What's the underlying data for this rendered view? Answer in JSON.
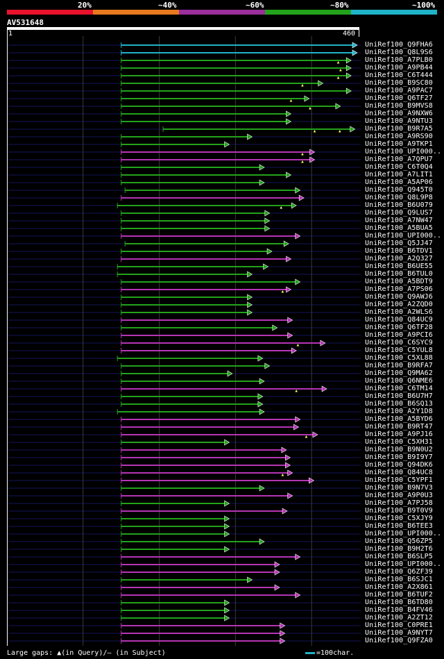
{
  "legend": {
    "segments": [
      {
        "label": "",
        "color": "#e8122d"
      },
      {
        "label": "20%",
        "color": "#e87a1e"
      },
      {
        "label": "~40%",
        "color": "#9b2f9b"
      },
      {
        "label": "~60%",
        "color": "#23a31b"
      },
      {
        "label": "~80%",
        "color": "#1fb3c8"
      }
    ],
    "labels": [
      "20%",
      "~40%",
      "~60%",
      "~80%",
      "~100%"
    ]
  },
  "query": {
    "id": "AV531648",
    "start_tick": "1",
    "end_tick": "460",
    "length": 460
  },
  "colors": {
    "cyan": "#1fb3c8",
    "green": "#23a31b",
    "magenta": "#b535b5",
    "background_line": "#14145a",
    "grid": "#3a3a3a",
    "gap_marker": "#ffff66"
  },
  "hits": [
    {
      "name": "UniRef100_Q9FHA6",
      "color": "cyan",
      "start": 150,
      "end": 460,
      "gaps": []
    },
    {
      "name": "UniRef100_Q8L9S6",
      "color": "cyan",
      "start": 150,
      "end": 460,
      "gaps": []
    },
    {
      "name": "UniRef100_A7PLB0",
      "color": "green",
      "start": 150,
      "end": 452,
      "gaps": [
        435
      ]
    },
    {
      "name": "UniRef100_A9PB44",
      "color": "green",
      "start": 150,
      "end": 452,
      "gaps": [
        438
      ]
    },
    {
      "name": "UniRef100_C6T444",
      "color": "green",
      "start": 150,
      "end": 452,
      "gaps": [
        435
      ]
    },
    {
      "name": "UniRef100_B9SC80",
      "color": "green",
      "start": 150,
      "end": 415,
      "gaps": [
        388
      ]
    },
    {
      "name": "UniRef100_A9PAC7",
      "color": "green",
      "start": 150,
      "end": 452,
      "gaps": []
    },
    {
      "name": "UniRef100_Q6TF27",
      "color": "green",
      "start": 150,
      "end": 397,
      "gaps": [
        373
      ]
    },
    {
      "name": "UniRef100_B9MVS8",
      "color": "green",
      "start": 150,
      "end": 438,
      "gaps": [
        398
      ]
    },
    {
      "name": "UniRef100_A9NXW6",
      "color": "green",
      "start": 150,
      "end": 373,
      "gaps": []
    },
    {
      "name": "UniRef100_A9NTU3",
      "color": "green",
      "start": 150,
      "end": 373,
      "gaps": []
    },
    {
      "name": "UniRef100_B9R7A5",
      "color": "green",
      "start": 205,
      "end": 457,
      "gaps": [
        404,
        437
      ]
    },
    {
      "name": "UniRef100_A9RS90",
      "color": "green",
      "start": 150,
      "end": 322,
      "gaps": []
    },
    {
      "name": "UniRef100_A9TKP1",
      "color": "green",
      "start": 150,
      "end": 292,
      "gaps": []
    },
    {
      "name": "UniRef100_UPI000..",
      "color": "magenta",
      "start": 150,
      "end": 404,
      "gaps": [
        388
      ]
    },
    {
      "name": "UniRef100_A7QPU7",
      "color": "magenta",
      "start": 150,
      "end": 404,
      "gaps": [
        388
      ]
    },
    {
      "name": "UniRef100_C6T0Q4",
      "color": "green",
      "start": 150,
      "end": 338,
      "gaps": []
    },
    {
      "name": "UniRef100_A7LIT1",
      "color": "green",
      "start": 150,
      "end": 373,
      "gaps": []
    },
    {
      "name": "UniRef100_A5AP06",
      "color": "green",
      "start": 150,
      "end": 338,
      "gaps": []
    },
    {
      "name": "UniRef100_Q945T0",
      "color": "green",
      "start": 155,
      "end": 385,
      "gaps": []
    },
    {
      "name": "UniRef100_Q8L9P8",
      "color": "magenta",
      "start": 150,
      "end": 390,
      "gaps": []
    },
    {
      "name": "UniRef100_B6U079",
      "color": "green",
      "start": 145,
      "end": 380,
      "gaps": [
        360
      ]
    },
    {
      "name": "UniRef100_Q9LUS7",
      "color": "green",
      "start": 150,
      "end": 345,
      "gaps": []
    },
    {
      "name": "UniRef100_A7NW47",
      "color": "green",
      "start": 150,
      "end": 345,
      "gaps": []
    },
    {
      "name": "UniRef100_A5BUA5",
      "color": "green",
      "start": 150,
      "end": 345,
      "gaps": []
    },
    {
      "name": "UniRef100_UPI000..",
      "color": "magenta",
      "start": 150,
      "end": 385,
      "gaps": []
    },
    {
      "name": "UniRef100_Q5JJ47",
      "color": "green",
      "start": 155,
      "end": 370,
      "gaps": []
    },
    {
      "name": "UniRef100_B6TDV1",
      "color": "green",
      "start": 150,
      "end": 348,
      "gaps": []
    },
    {
      "name": "UniRef100_A2Q327",
      "color": "magenta",
      "start": 150,
      "end": 373,
      "gaps": []
    },
    {
      "name": "UniRef100_B6UE55",
      "color": "green",
      "start": 145,
      "end": 343,
      "gaps": []
    },
    {
      "name": "UniRef100_B6TUL0",
      "color": "green",
      "start": 145,
      "end": 322,
      "gaps": []
    },
    {
      "name": "UniRef100_A5BDT9",
      "color": "green",
      "start": 150,
      "end": 385,
      "gaps": []
    },
    {
      "name": "UniRef100_A7PS06",
      "color": "magenta",
      "start": 150,
      "end": 373,
      "gaps": [
        362
      ]
    },
    {
      "name": "UniRef100_Q9AWJ6",
      "color": "green",
      "start": 150,
      "end": 322,
      "gaps": []
    },
    {
      "name": "UniRef100_A2ZQD0",
      "color": "green",
      "start": 150,
      "end": 322,
      "gaps": []
    },
    {
      "name": "UniRef100_A2WLS6",
      "color": "green",
      "start": 150,
      "end": 322,
      "gaps": []
    },
    {
      "name": "UniRef100_Q84UC9",
      "color": "magenta",
      "start": 150,
      "end": 375,
      "gaps": []
    },
    {
      "name": "UniRef100_Q6TF28",
      "color": "green",
      "start": 150,
      "end": 355,
      "gaps": []
    },
    {
      "name": "UniRef100_A9PCI6",
      "color": "magenta",
      "start": 150,
      "end": 375,
      "gaps": []
    },
    {
      "name": "UniRef100_C6SYC9",
      "color": "magenta",
      "start": 150,
      "end": 418,
      "gaps": [
        382
      ]
    },
    {
      "name": "UniRef100_C5YUL8",
      "color": "magenta",
      "start": 150,
      "end": 380,
      "gaps": []
    },
    {
      "name": "UniRef100_C5XL88",
      "color": "green",
      "start": 145,
      "end": 336,
      "gaps": []
    },
    {
      "name": "UniRef100_B9RFA7",
      "color": "green",
      "start": 150,
      "end": 345,
      "gaps": []
    },
    {
      "name": "UniRef100_Q9MA62",
      "color": "green",
      "start": 150,
      "end": 296,
      "gaps": []
    },
    {
      "name": "UniRef100_Q6NME6",
      "color": "green",
      "start": 150,
      "end": 338,
      "gaps": []
    },
    {
      "name": "UniRef100_C6TM14",
      "color": "magenta",
      "start": 150,
      "end": 420,
      "gaps": [
        380
      ]
    },
    {
      "name": "UniRef100_B6U7H7",
      "color": "green",
      "start": 150,
      "end": 336,
      "gaps": []
    },
    {
      "name": "UniRef100_B6SQ13",
      "color": "green",
      "start": 150,
      "end": 336,
      "gaps": []
    },
    {
      "name": "UniRef100_A2Y1D8",
      "color": "green",
      "start": 145,
      "end": 338,
      "gaps": []
    },
    {
      "name": "UniRef100_A5BYD6",
      "color": "magenta",
      "start": 150,
      "end": 385,
      "gaps": []
    },
    {
      "name": "UniRef100_B9RT47",
      "color": "magenta",
      "start": 150,
      "end": 383,
      "gaps": []
    },
    {
      "name": "UniRef100_A9PJ16",
      "color": "magenta",
      "start": 150,
      "end": 408,
      "gaps": [
        393
      ]
    },
    {
      "name": "UniRef100_C5XH31",
      "color": "green",
      "start": 150,
      "end": 292,
      "gaps": []
    },
    {
      "name": "UniRef100_B9N0U2",
      "color": "magenta",
      "start": 150,
      "end": 367,
      "gaps": []
    },
    {
      "name": "UniRef100_B9I9Y7",
      "color": "magenta",
      "start": 150,
      "end": 372,
      "gaps": []
    },
    {
      "name": "UniRef100_Q94DK6",
      "color": "magenta",
      "start": 150,
      "end": 372,
      "gaps": []
    },
    {
      "name": "UniRef100_Q84UC8",
      "color": "magenta",
      "start": 150,
      "end": 375,
      "gaps": [
        362
      ]
    },
    {
      "name": "UniRef100_C5YPF1",
      "color": "magenta",
      "start": 150,
      "end": 403,
      "gaps": []
    },
    {
      "name": "UniRef100_B9N7V3",
      "color": "green",
      "start": 150,
      "end": 338,
      "gaps": []
    },
    {
      "name": "UniRef100_A9P0U3",
      "color": "magenta",
      "start": 150,
      "end": 375,
      "gaps": []
    },
    {
      "name": "UniRef100_A7PJ58",
      "color": "green",
      "start": 150,
      "end": 292,
      "gaps": []
    },
    {
      "name": "UniRef100_B9T0V9",
      "color": "magenta",
      "start": 150,
      "end": 368,
      "gaps": []
    },
    {
      "name": "UniRef100_C5XJY9",
      "color": "green",
      "start": 150,
      "end": 292,
      "gaps": []
    },
    {
      "name": "UniRef100_B6TEE3",
      "color": "green",
      "start": 150,
      "end": 292,
      "gaps": []
    },
    {
      "name": "UniRef100_UPI000..",
      "color": "green",
      "start": 150,
      "end": 292,
      "gaps": []
    },
    {
      "name": "UniRef100_Q56ZP5",
      "color": "green",
      "start": 150,
      "end": 338,
      "gaps": []
    },
    {
      "name": "UniRef100_B9H2T6",
      "color": "green",
      "start": 150,
      "end": 292,
      "gaps": []
    },
    {
      "name": "UniRef100_B6SLP5",
      "color": "magenta",
      "start": 150,
      "end": 385,
      "gaps": []
    },
    {
      "name": "UniRef100_UPI000..",
      "color": "magenta",
      "start": 150,
      "end": 358,
      "gaps": []
    },
    {
      "name": "UniRef100_Q6ZF39",
      "color": "magenta",
      "start": 150,
      "end": 358,
      "gaps": []
    },
    {
      "name": "UniRef100_B6SJC1",
      "color": "green",
      "start": 150,
      "end": 322,
      "gaps": []
    },
    {
      "name": "UniRef100_A2X861",
      "color": "magenta",
      "start": 150,
      "end": 358,
      "gaps": []
    },
    {
      "name": "UniRef100_B6TUF2",
      "color": "magenta",
      "start": 150,
      "end": 385,
      "gaps": []
    },
    {
      "name": "UniRef100_B6TD80",
      "color": "green",
      "start": 150,
      "end": 292,
      "gaps": []
    },
    {
      "name": "UniRef100_B4FV46",
      "color": "green",
      "start": 150,
      "end": 292,
      "gaps": []
    },
    {
      "name": "UniRef100_A2ZT12",
      "color": "green",
      "start": 150,
      "end": 292,
      "gaps": []
    },
    {
      "name": "UniRef100_C0PRE1",
      "color": "magenta",
      "start": 150,
      "end": 365,
      "gaps": []
    },
    {
      "name": "UniRef100_A9NYT7",
      "color": "magenta",
      "start": 150,
      "end": 365,
      "gaps": []
    },
    {
      "name": "UniRef100_Q9FZA0",
      "color": "magenta",
      "start": 150,
      "end": 365,
      "gaps": []
    }
  ],
  "footer": {
    "gaps_text": "Large gaps: ▲(in Query)/– (in Subject)",
    "scale_text": "=100char."
  }
}
